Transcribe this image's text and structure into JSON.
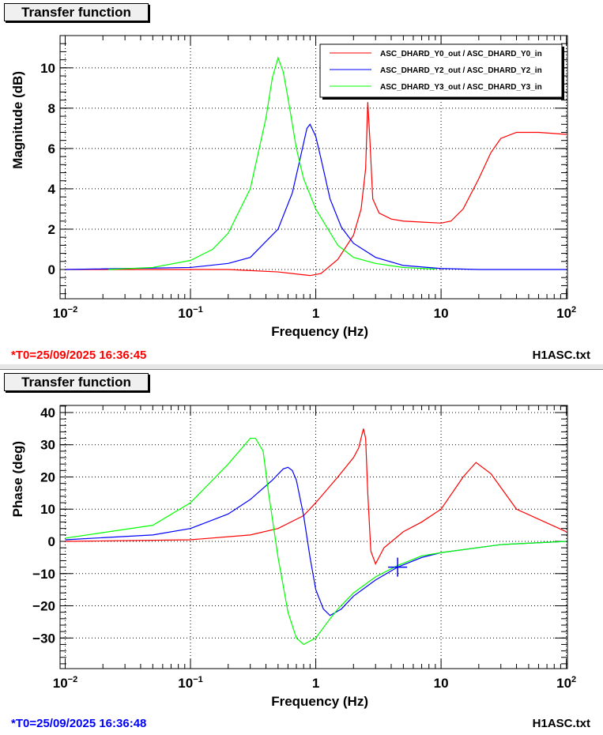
{
  "chart_data": [
    {
      "type": "line",
      "title": "Transfer function",
      "xlabel": "Frequency (Hz)",
      "ylabel": "Magnitude (dB)",
      "xscale": "log",
      "xlim": [
        0.0091,
        102
      ],
      "ylim": [
        -1.45,
        11.6
      ],
      "yticks": [
        0,
        2,
        4,
        6,
        8,
        10
      ],
      "xticks": [
        "10^-2",
        "10^-1",
        "1",
        "10",
        "10^2"
      ],
      "grid": true,
      "legend_position": "top-right",
      "footer_left": "*T0=25/09/2025 16:36:45",
      "footer_left_color": "#ff0000",
      "footer_right": "H1ASC.txt",
      "series": [
        {
          "name": "ASC_DHARD_Y0_out / ASC_DHARD_Y0_in",
          "color": "#ff0000",
          "x": [
            0.01,
            0.1,
            0.2,
            0.5,
            0.9,
            1.1,
            1.5,
            2,
            2.3,
            2.5,
            2.6,
            2.7,
            2.85,
            3.2,
            4,
            5,
            7,
            10,
            12,
            15,
            20,
            25,
            30,
            40,
            60,
            100
          ],
          "y": [
            0,
            0,
            0,
            -0.12,
            -0.3,
            -0.2,
            0.5,
            1.7,
            3,
            5,
            8.3,
            6.5,
            3.5,
            2.8,
            2.5,
            2.4,
            2.35,
            2.3,
            2.4,
            3,
            4.5,
            5.8,
            6.5,
            6.8,
            6.8,
            6.7
          ]
        },
        {
          "name": "ASC_DHARD_Y2_out / ASC_DHARD_Y2_in",
          "color": "#0000ff",
          "x": [
            0.01,
            0.1,
            0.2,
            0.3,
            0.5,
            0.65,
            0.75,
            0.85,
            0.9,
            1.0,
            1.1,
            1.3,
            1.6,
            2,
            3,
            5,
            10,
            20,
            100
          ],
          "y": [
            0,
            0.1,
            0.3,
            0.6,
            2,
            3.8,
            5.5,
            7,
            7.2,
            6.6,
            5.5,
            3.5,
            2.1,
            1.3,
            0.6,
            0.2,
            0.05,
            0,
            0
          ]
        },
        {
          "name": "ASC_DHARD_Y3_out / ASC_DHARD_Y3_in",
          "color": "#00ff00",
          "x": [
            0.022,
            0.05,
            0.1,
            0.15,
            0.2,
            0.3,
            0.4,
            0.45,
            0.5,
            0.55,
            0.6,
            0.7,
            0.8,
            1,
            1.5,
            2,
            3,
            5,
            9
          ],
          "y": [
            0,
            0.1,
            0.45,
            1,
            1.8,
            4,
            7.5,
            9.5,
            10.5,
            9.8,
            8.5,
            6,
            4.5,
            3,
            1.2,
            0.6,
            0.3,
            0.1,
            0.02
          ]
        }
      ]
    },
    {
      "type": "line",
      "title": "Transfer function",
      "xlabel": "Frequency (Hz)",
      "ylabel": "Phase (deg)",
      "xscale": "log",
      "xlim": [
        0.0091,
        102
      ],
      "ylim": [
        -39.5,
        42.2
      ],
      "yticks": [
        -30,
        -20,
        -10,
        0,
        10,
        20,
        30,
        40
      ],
      "xticks": [
        "10^-2",
        "10^-1",
        "1",
        "10",
        "10^2"
      ],
      "grid": true,
      "footer_left": "*T0=25/09/2025 16:36:48",
      "footer_left_color": "#0000ff",
      "footer_right": "H1ASC.txt",
      "marker": {
        "x": 4.5,
        "y": -8,
        "color": "#0000ff"
      },
      "series": [
        {
          "name": "ASC_DHARD_Y0_out / ASC_DHARD_Y0_in",
          "color": "#ff0000",
          "x": [
            0.01,
            0.1,
            0.3,
            0.5,
            0.8,
            1,
            1.5,
            2,
            2.2,
            2.4,
            2.5,
            2.6,
            2.75,
            3,
            3.5,
            5,
            7,
            10,
            15,
            19,
            25,
            40,
            100
          ],
          "y": [
            0,
            0.5,
            2,
            4,
            8,
            12,
            20,
            26,
            29,
            35,
            32,
            15,
            -3,
            -7,
            -2,
            3,
            6,
            10,
            20,
            24.5,
            21,
            10,
            3
          ]
        },
        {
          "name": "ASC_DHARD_Y2_out / ASC_DHARD_Y2_in",
          "color": "#0000ff",
          "x": [
            0.01,
            0.05,
            0.1,
            0.2,
            0.3,
            0.45,
            0.55,
            0.6,
            0.65,
            0.7,
            0.8,
            0.9,
            1,
            1.15,
            1.3,
            1.6,
            2,
            3,
            4.5,
            7,
            10,
            30,
            100
          ],
          "y": [
            0.5,
            2,
            4,
            8.5,
            13,
            19,
            22.5,
            23,
            22,
            19,
            8,
            -5,
            -15,
            -21,
            -23,
            -21,
            -17,
            -12,
            -8,
            -5,
            -3.5,
            -1,
            0
          ]
        },
        {
          "name": "ASC_DHARD_Y3_out / ASC_DHARD_Y3_in",
          "color": "#00ff00",
          "x": [
            0.01,
            0.05,
            0.1,
            0.2,
            0.3,
            0.33,
            0.38,
            0.42,
            0.5,
            0.6,
            0.7,
            0.8,
            1,
            1.3,
            1.5,
            2,
            3,
            4.5,
            7,
            10,
            30,
            100
          ],
          "y": [
            1,
            5,
            12,
            24,
            32,
            32,
            28,
            15,
            -5,
            -22,
            -30,
            -32,
            -30,
            -24,
            -21,
            -16,
            -11,
            -7.5,
            -4.5,
            -3.5,
            -1,
            0
          ]
        }
      ]
    }
  ]
}
